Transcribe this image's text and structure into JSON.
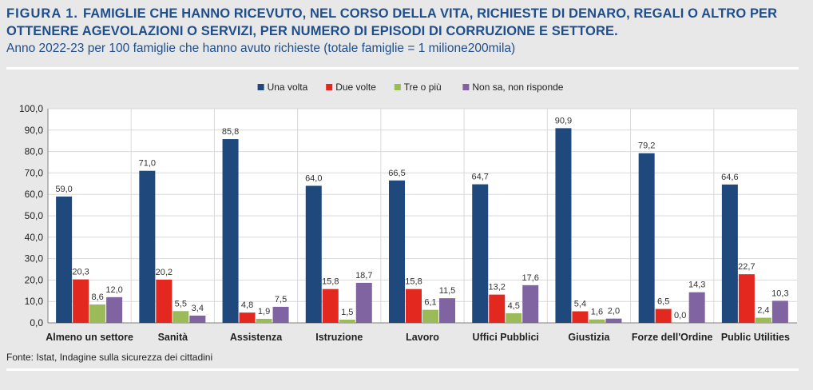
{
  "header": {
    "figure_label": "FIGURA 1.",
    "title": "FAMIGLIE CHE HANNO RICEVUTO, NEL CORSO DELLA VITA, RICHIESTE DI DENARO, REGALI O ALTRO PER OTTENERE AGEVOLAZIONI O SERVIZI, PER NUMERO DI EPISODI DI CORRUZIONE E SETTORE.",
    "subtitle": "Anno 2022-23 per 100 famiglie che hanno avuto richieste (totale famiglie = 1 milione200mila)"
  },
  "source": "Fonte: Istat, Indagine sulla sicurezza dei cittadini",
  "chart_data": {
    "type": "bar",
    "categories": [
      "Almeno un settore",
      "Sanità",
      "Assistenza",
      "Istruzione",
      "Lavoro",
      "Uffici Pubblici",
      "Giustizia",
      "Forze dell'Ordine",
      "Public Utilities"
    ],
    "series": [
      {
        "name": "Una volta",
        "color": "#1f497d",
        "values": [
          59.0,
          71.0,
          85.8,
          64.0,
          66.5,
          64.7,
          90.9,
          79.2,
          64.6
        ]
      },
      {
        "name": "Due volte",
        "color": "#e3281f",
        "values": [
          20.3,
          20.2,
          4.8,
          15.8,
          15.8,
          13.2,
          5.4,
          6.5,
          22.7
        ]
      },
      {
        "name": "Tre o più",
        "color": "#9bbb59",
        "values": [
          8.6,
          5.5,
          1.9,
          1.5,
          6.1,
          4.5,
          1.6,
          0.0,
          2.4
        ]
      },
      {
        "name": "Non sa, non risponde",
        "color": "#8064a2",
        "values": [
          12.0,
          3.4,
          7.5,
          18.7,
          11.5,
          17.6,
          2.0,
          14.3,
          10.3
        ]
      }
    ],
    "data_labels": [
      [
        "59,0",
        "71,0",
        "85,8",
        "64,0",
        "66,5",
        "64,7",
        "90,9",
        "79,2",
        "64,6"
      ],
      [
        "20,3",
        "20,2",
        "4,8",
        "15,8",
        "15,8",
        "13,2",
        "5,4",
        "6,5",
        "22,7"
      ],
      [
        "8,6",
        "5,5",
        "1,9",
        "1,5",
        "6,1",
        "4,5",
        "1,6",
        "0,0",
        "2,4"
      ],
      [
        "12,0",
        "3,4",
        "7,5",
        "18,7",
        "11,5",
        "17,6",
        "2,0",
        "14,3",
        "10,3"
      ]
    ],
    "ylim": [
      0,
      100
    ],
    "y_ticks": [
      "0,0",
      "10,0",
      "20,0",
      "30,0",
      "40,0",
      "50,0",
      "60,0",
      "70,0",
      "80,0",
      "90,0",
      "100,0"
    ],
    "grid": true,
    "legend_position": "top-center",
    "xlabel": "",
    "ylabel": ""
  }
}
